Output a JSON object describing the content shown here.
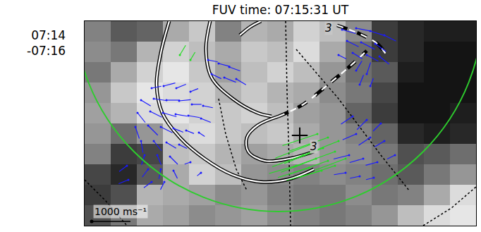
{
  "chart_data": {
    "type": "image_overlay",
    "title": "FUV time: 07:15:31 UT",
    "side_label": [
      "07:14",
      "-07:16"
    ],
    "xlim": [
      0,
      555
    ],
    "ylim": [
      290,
      0
    ],
    "tick_labels": false,
    "image": {
      "x": [
        0,
        37,
        74,
        111,
        148,
        185,
        222,
        259,
        296,
        333,
        370,
        407,
        444,
        481,
        518,
        555
      ],
      "y": [
        0,
        29,
        58,
        87,
        116,
        145,
        174,
        203,
        232,
        261,
        290
      ],
      "zlim": [
        0,
        255
      ],
      "z": [
        [
          130,
          90,
          100,
          170,
          200,
          130,
          180,
          170,
          210,
          190,
          140,
          60,
          40,
          30,
          30
        ],
        [
          140,
          120,
          180,
          210,
          190,
          170,
          200,
          190,
          220,
          170,
          110,
          60,
          40,
          20,
          20
        ],
        [
          120,
          170,
          210,
          230,
          200,
          160,
          190,
          210,
          190,
          150,
          110,
          90,
          30,
          20,
          20
        ],
        [
          150,
          200,
          230,
          220,
          210,
          180,
          200,
          180,
          170,
          140,
          120,
          70,
          20,
          20,
          20
        ],
        [
          160,
          180,
          220,
          230,
          210,
          200,
          210,
          190,
          160,
          150,
          100,
          60,
          20,
          20,
          30
        ],
        [
          150,
          110,
          150,
          210,
          220,
          200,
          190,
          200,
          170,
          150,
          130,
          100,
          40,
          30,
          40
        ],
        [
          130,
          60,
          70,
          190,
          200,
          180,
          160,
          170,
          180,
          150,
          140,
          120,
          80,
          90,
          110
        ],
        [
          70,
          40,
          90,
          170,
          210,
          190,
          150,
          140,
          130,
          140,
          130,
          110,
          90,
          120,
          150
        ],
        [
          60,
          80,
          180,
          170,
          160,
          140,
          150,
          130,
          120,
          120,
          140,
          120,
          130,
          170,
          220
        ],
        [
          80,
          120,
          170,
          160,
          140,
          150,
          160,
          140,
          130,
          120,
          130,
          150,
          190,
          220,
          230
        ]
      ]
    },
    "circle": {
      "center": [
        275,
        -20
      ],
      "radius": 290,
      "color": "#2ecc2e"
    },
    "dotted_lines": [
      [
        [
          285,
          0
        ],
        [
          287,
          100
        ],
        [
          290,
          200
        ],
        [
          292,
          290
        ]
      ],
      [
        [
          0,
          225
        ],
        [
          30,
          255
        ],
        [
          60,
          290
        ]
      ],
      [
        [
          480,
          290
        ],
        [
          520,
          265
        ],
        [
          555,
          235
        ]
      ],
      [
        [
          300,
          40
        ],
        [
          360,
          110
        ],
        [
          420,
          190
        ],
        [
          460,
          240
        ]
      ],
      [
        [
          190,
          110
        ],
        [
          200,
          160
        ],
        [
          215,
          210
        ],
        [
          230,
          240
        ]
      ]
    ],
    "contours": [
      {
        "line_style": "solid",
        "points": [
          [
            120,
            0
          ],
          [
            108,
            45
          ],
          [
            102,
            90
          ],
          [
            110,
            130
          ],
          [
            135,
            165
          ],
          [
            170,
            195
          ],
          [
            210,
            218
          ],
          [
            250,
            228
          ],
          [
            290,
            224
          ],
          [
            325,
            210
          ]
        ]
      },
      {
        "line_style": "solid",
        "points": [
          [
            178,
            0
          ],
          [
            172,
            40
          ],
          [
            180,
            80
          ],
          [
            210,
            110
          ],
          [
            245,
            130
          ],
          [
            265,
            135
          ]
        ]
      },
      {
        "line_style": "solid",
        "points": [
          [
            220,
            20
          ],
          [
            235,
            8
          ],
          [
            250,
            0
          ]
        ]
      },
      {
        "line_style": "solid",
        "points": [
          [
            325,
            185
          ],
          [
            290,
            195
          ],
          [
            255,
            198
          ],
          [
            232,
            185
          ],
          [
            230,
            165
          ],
          [
            245,
            148
          ],
          [
            275,
            135
          ]
        ]
      },
      {
        "line_style": "dash",
        "points": [
          [
            275,
            135
          ],
          [
            310,
            118
          ],
          [
            345,
            90
          ],
          [
            375,
            65
          ],
          [
            400,
            42
          ]
        ]
      },
      {
        "line_style": "dash",
        "points": [
          [
            358,
            6
          ],
          [
            390,
            18
          ],
          [
            415,
            32
          ],
          [
            428,
            48
          ]
        ]
      }
    ],
    "contour_labels": [
      {
        "text": "3",
        "x": 346,
        "y": 10
      },
      {
        "text": "3",
        "x": 325,
        "y": 178
      }
    ],
    "cross": [
      305,
      162
    ],
    "vectors": [
      {
        "color": "#1a1aff",
        "points": [
          [
            365,
            12,
            350,
            100
          ],
          [
            385,
            10,
            400,
            80
          ],
          [
            405,
            14,
            380,
            120
          ],
          [
            425,
            20,
            300,
            150
          ],
          [
            372,
            28,
            300,
            150
          ],
          [
            392,
            30,
            350,
            180
          ],
          [
            412,
            32,
            280,
            200
          ],
          [
            380,
            45,
            250,
            150
          ],
          [
            400,
            48,
            300,
            160
          ],
          [
            418,
            50,
            250,
            200
          ],
          [
            360,
            48,
            200,
            100
          ],
          [
            175,
            55,
            250,
            50
          ],
          [
            190,
            60,
            300,
            80
          ],
          [
            205,
            65,
            280,
            100
          ],
          [
            180,
            75,
            250,
            120
          ],
          [
            198,
            80,
            300,
            120
          ],
          [
            215,
            82,
            250,
            150
          ],
          [
            95,
            95,
            250,
            -50
          ],
          [
            112,
            92,
            300,
            -80
          ],
          [
            130,
            95,
            250,
            -100
          ],
          [
            150,
            100,
            200,
            -80
          ],
          [
            80,
            112,
            250,
            150
          ],
          [
            98,
            110,
            350,
            50
          ],
          [
            116,
            112,
            350,
            0
          ],
          [
            134,
            113,
            300,
            -30
          ],
          [
            152,
            118,
            250,
            0
          ],
          [
            168,
            120,
            250,
            50
          ],
          [
            75,
            130,
            200,
            250
          ],
          [
            93,
            128,
            300,
            150
          ],
          [
            111,
            130,
            350,
            100
          ],
          [
            129,
            132,
            300,
            50
          ],
          [
            147,
            134,
            300,
            50
          ],
          [
            165,
            138,
            250,
            100
          ],
          [
            72,
            150,
            100,
            300
          ],
          [
            90,
            148,
            250,
            250
          ],
          [
            108,
            150,
            300,
            150
          ],
          [
            126,
            152,
            250,
            100
          ],
          [
            144,
            155,
            200,
            80
          ],
          [
            162,
            158,
            150,
            100
          ],
          [
            80,
            170,
            50,
            300
          ],
          [
            98,
            170,
            200,
            250
          ],
          [
            116,
            172,
            250,
            150
          ],
          [
            134,
            175,
            200,
            100
          ],
          [
            85,
            190,
            -80,
            250
          ],
          [
            103,
            190,
            100,
            250
          ],
          [
            121,
            192,
            200,
            200
          ],
          [
            90,
            210,
            -150,
            200
          ],
          [
            108,
            210,
            -50,
            250
          ],
          [
            126,
            212,
            100,
            200
          ],
          [
            95,
            228,
            -200,
            150
          ],
          [
            113,
            228,
            -100,
            200
          ],
          [
            60,
            205,
            -200,
            150
          ],
          [
            62,
            225,
            -250,
            100
          ],
          [
            380,
            135,
            -300,
            200
          ],
          [
            400,
            140,
            -250,
            250
          ],
          [
            420,
            145,
            -200,
            200
          ],
          [
            385,
            160,
            -350,
            150
          ],
          [
            405,
            165,
            -300,
            200
          ],
          [
            425,
            170,
            -250,
            150
          ],
          [
            375,
            190,
            -400,
            100
          ],
          [
            395,
            195,
            -350,
            100
          ],
          [
            415,
            200,
            -300,
            80
          ],
          [
            440,
            190,
            -200,
            100
          ],
          [
            370,
            215,
            -300,
            50
          ],
          [
            390,
            220,
            -250,
            50
          ],
          [
            410,
            222,
            -200,
            50
          ],
          [
            385,
            70,
            150,
            -250
          ],
          [
            400,
            75,
            100,
            -300
          ],
          [
            390,
            90,
            100,
            -250
          ],
          [
            405,
            92,
            80,
            -200
          ],
          [
            150,
            200,
            -150,
            50
          ],
          [
            165,
            215,
            -100,
            80
          ]
        ]
      },
      {
        "color": "#22dd22",
        "points": [
          [
            135,
            48,
            150,
            -250
          ],
          [
            150,
            55,
            120,
            -200
          ],
          [
            330,
            160,
            -900,
            300
          ],
          [
            345,
            165,
            -1000,
            350
          ],
          [
            360,
            170,
            -1000,
            400
          ],
          [
            320,
            175,
            -900,
            350
          ],
          [
            338,
            180,
            -1000,
            400
          ],
          [
            355,
            185,
            -1100,
            400
          ],
          [
            310,
            190,
            -800,
            300
          ],
          [
            328,
            195,
            -900,
            350
          ],
          [
            345,
            198,
            -1000,
            350
          ],
          [
            300,
            205,
            -700,
            200
          ],
          [
            318,
            208,
            -800,
            250
          ],
          [
            336,
            212,
            -900,
            250
          ],
          [
            355,
            205,
            -900,
            300
          ],
          [
            370,
            195,
            -800,
            300
          ]
        ]
      }
    ],
    "scale_bar": {
      "value": 1000,
      "label": "1000 ms⁻¹"
    }
  }
}
